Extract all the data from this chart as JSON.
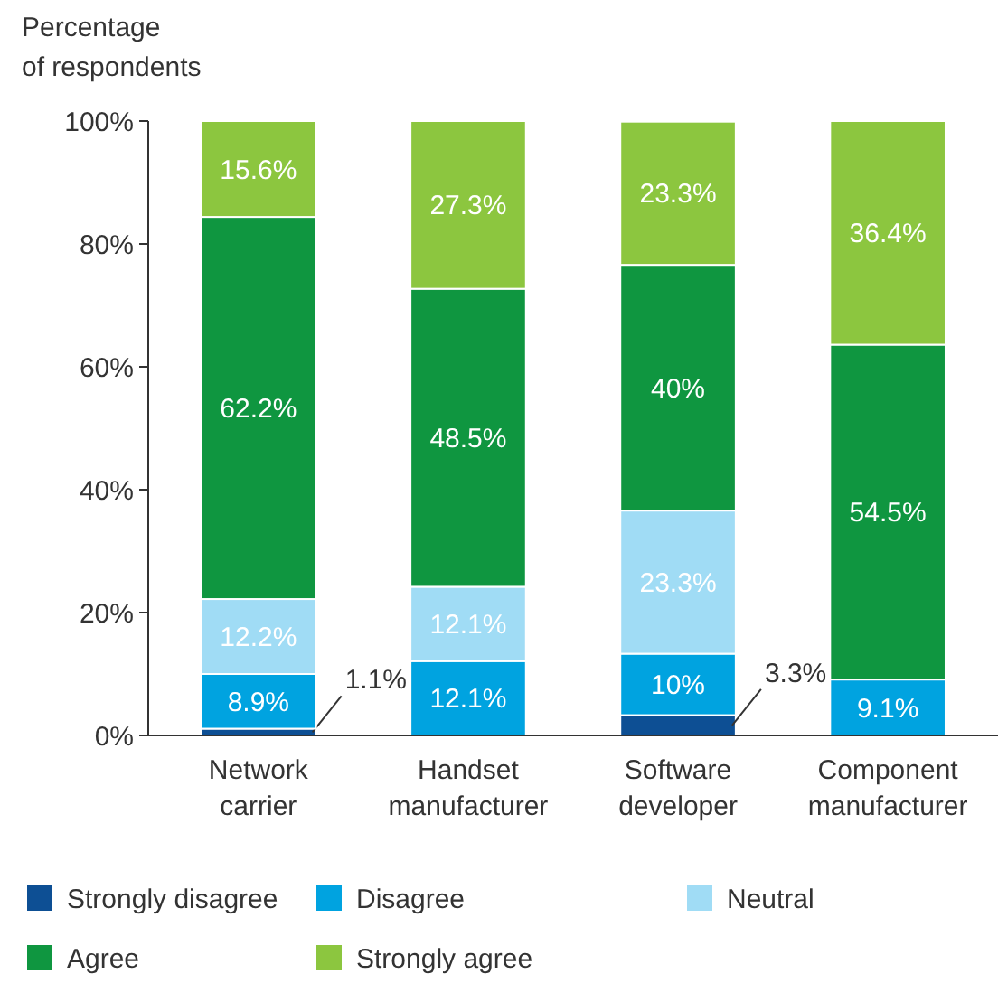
{
  "chart_data": {
    "type": "bar",
    "stacked": true,
    "ylabel": "Percentage\nof respondents",
    "categories": [
      "Network carrier",
      "Handset manufacturer",
      "Software developer",
      "Component manufacturer"
    ],
    "ylim": [
      0,
      100
    ],
    "yticks": [
      {
        "value": 0,
        "label": "0%"
      },
      {
        "value": 20,
        "label": "20%"
      },
      {
        "value": 40,
        "label": "40%"
      },
      {
        "value": 60,
        "label": "60%"
      },
      {
        "value": 80,
        "label": "80%"
      },
      {
        "value": 100,
        "label": "100%"
      }
    ],
    "legend": "bottom",
    "series": [
      {
        "name": "Strongly disagree",
        "color": "#0d4f94",
        "values": [
          1.1,
          null,
          3.3,
          null
        ],
        "value_labels": [
          "1.1%",
          null,
          "3.3%",
          null
        ]
      },
      {
        "name": "Disagree",
        "color": "#00a3e0",
        "values": [
          8.9,
          12.1,
          10,
          9.1
        ],
        "value_labels": [
          "8.9%",
          "12.1%",
          "10%",
          "9.1%"
        ]
      },
      {
        "name": "Neutral",
        "color": "#a0dcf5",
        "values": [
          12.2,
          12.1,
          23.3,
          null
        ],
        "value_labels": [
          "12.2%",
          "12.1%",
          "23.3%",
          null
        ]
      },
      {
        "name": "Agree",
        "color": "#0f9640",
        "values": [
          62.2,
          48.5,
          40,
          54.5
        ],
        "value_labels": [
          "62.2%",
          "48.5%",
          "40%",
          "54.5%"
        ]
      },
      {
        "name": "Strongly agree",
        "color": "#8cc63f",
        "values": [
          15.6,
          27.3,
          23.3,
          36.4
        ],
        "value_labels": [
          "15.6%",
          "27.3%",
          "23.3%",
          "36.4%"
        ]
      }
    ]
  }
}
